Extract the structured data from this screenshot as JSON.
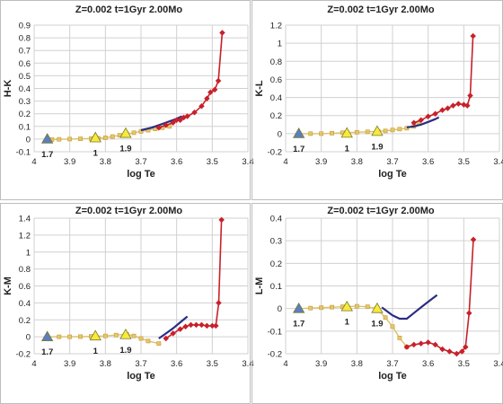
{
  "chart_data": [
    {
      "type": "line",
      "title": "Z=0.002  t=1Gyr  2.00Mo",
      "xlabel": "log Te",
      "ylabel": "H-K",
      "xlim": [
        4.0,
        3.4
      ],
      "ylim": [
        -0.1,
        0.9
      ],
      "xticks": [
        "4",
        "3.9",
        "3.8",
        "3.7",
        "3.6",
        "3.5",
        "3.4"
      ],
      "yticks": [
        "-0.1",
        "0",
        "0.1",
        "0.2",
        "0.3",
        "0.4",
        "0.5",
        "0.6",
        "0.7",
        "0.8",
        "0.9"
      ],
      "grid": true,
      "series": [
        {
          "color": "#c8202a",
          "x": [
            3.65,
            3.63,
            3.61,
            3.6,
            3.59,
            3.58,
            3.57,
            3.55,
            3.53,
            3.515,
            3.505,
            3.493,
            3.483,
            3.472
          ],
          "y": [
            0.09,
            0.11,
            0.13,
            0.15,
            0.15,
            0.17,
            0.18,
            0.21,
            0.26,
            0.32,
            0.37,
            0.39,
            0.46,
            0.84
          ]
        },
        {
          "color": "#2b2d83",
          "x": [
            3.7,
            3.67,
            3.64,
            3.62,
            3.6,
            3.585
          ],
          "y": [
            0.07,
            0.09,
            0.12,
            0.14,
            0.16,
            0.18
          ]
        },
        {
          "color": "#d8c46a",
          "x": [
            3.962,
            3.95,
            3.93,
            3.9,
            3.87,
            3.84,
            3.82,
            3.8,
            3.78,
            3.76,
            3.74,
            3.72,
            3.7,
            3.68,
            3.66,
            3.64,
            3.62
          ],
          "y": [
            -0.005,
            -0.004,
            -0.002,
            0.0,
            0.002,
            0.004,
            0.006,
            0.01,
            0.02,
            0.03,
            0.04,
            0.05,
            0.06,
            0.07,
            0.08,
            0.09,
            0.1
          ]
        }
      ],
      "markers": [
        {
          "label": "1.7",
          "x": 3.963,
          "y": 0.0,
          "color": "#5b7ec2"
        },
        {
          "label": "1",
          "x": 3.828,
          "y": 0.01,
          "color": "#f7ea3c"
        },
        {
          "label": "1.9",
          "x": 3.743,
          "y": 0.045,
          "color": "#f7ea3c"
        }
      ]
    },
    {
      "type": "line",
      "title": "Z=0.002  t=1Gyr  2.00Mo",
      "xlabel": "log Te",
      "ylabel": "K-L",
      "xlim": [
        4.0,
        3.4
      ],
      "ylim": [
        -0.2,
        1.2
      ],
      "xticks": [
        "4",
        "3.9",
        "3.8",
        "3.7",
        "3.6",
        "3.5",
        "3.4"
      ],
      "yticks": [
        "-0.2",
        "0",
        "0.2",
        "0.4",
        "0.6",
        "0.8",
        "1",
        "1.2"
      ],
      "grid": true,
      "series": [
        {
          "color": "#c8202a",
          "x": [
            3.64,
            3.62,
            3.6,
            3.58,
            3.56,
            3.545,
            3.53,
            3.515,
            3.5,
            3.49,
            3.482,
            3.474
          ],
          "y": [
            0.12,
            0.15,
            0.19,
            0.22,
            0.26,
            0.28,
            0.31,
            0.33,
            0.32,
            0.31,
            0.42,
            1.08
          ]
        },
        {
          "color": "#2b2d83",
          "x": [
            3.66,
            3.64,
            3.62,
            3.6,
            3.58,
            3.57
          ],
          "y": [
            0.07,
            0.08,
            0.1,
            0.13,
            0.16,
            0.18
          ]
        },
        {
          "color": "#d8c46a",
          "x": [
            3.962,
            3.93,
            3.9,
            3.87,
            3.84,
            3.8,
            3.77,
            3.74,
            3.72,
            3.7,
            3.68,
            3.66,
            3.64,
            3.625
          ],
          "y": [
            0.0,
            0.0,
            0.0,
            0.005,
            0.01,
            0.015,
            0.02,
            0.025,
            0.03,
            0.04,
            0.05,
            0.06,
            0.08,
            0.11
          ]
        }
      ],
      "markers": [
        {
          "label": "1.7",
          "x": 3.963,
          "y": 0.0,
          "color": "#5b7ec2"
        },
        {
          "label": "1",
          "x": 3.828,
          "y": 0.005,
          "color": "#f7ea3c"
        },
        {
          "label": "1.9",
          "x": 3.743,
          "y": 0.025,
          "color": "#f7ea3c"
        }
      ]
    },
    {
      "type": "line",
      "title": "Z=0.002  t=1Gyr  2.00Mo",
      "xlabel": "log Te",
      "ylabel": "K-M",
      "xlim": [
        4.0,
        3.4
      ],
      "ylim": [
        -0.2,
        1.4
      ],
      "xticks": [
        "4",
        "3.9",
        "3.8",
        "3.7",
        "3.6",
        "3.5",
        "3.4"
      ],
      "yticks": [
        "-0.2",
        "0",
        "0.2",
        "0.4",
        "0.6",
        "0.8",
        "1",
        "1.2",
        "1.4"
      ],
      "grid": true,
      "series": [
        {
          "color": "#c8202a",
          "x": [
            3.63,
            3.61,
            3.59,
            3.575,
            3.56,
            3.545,
            3.53,
            3.515,
            3.5,
            3.49,
            3.482,
            3.474
          ],
          "y": [
            -0.02,
            0.04,
            0.09,
            0.12,
            0.14,
            0.14,
            0.14,
            0.13,
            0.13,
            0.13,
            0.4,
            1.38
          ]
        },
        {
          "color": "#2b2d83",
          "x": [
            3.65,
            3.63,
            3.61,
            3.59,
            3.57
          ],
          "y": [
            -0.02,
            0.04,
            0.1,
            0.17,
            0.24
          ]
        },
        {
          "color": "#d8c46a",
          "x": [
            3.962,
            3.93,
            3.9,
            3.87,
            3.84,
            3.8,
            3.77,
            3.74,
            3.72,
            3.7,
            3.68,
            3.65
          ],
          "y": [
            0.0,
            0.0,
            0.0,
            0.002,
            0.005,
            0.01,
            0.02,
            0.03,
            0.01,
            -0.02,
            -0.05,
            -0.08
          ]
        }
      ],
      "markers": [
        {
          "label": "1.7",
          "x": 3.963,
          "y": 0.0,
          "color": "#5b7ec2"
        },
        {
          "label": "1",
          "x": 3.828,
          "y": 0.01,
          "color": "#f7ea3c"
        },
        {
          "label": "1.9",
          "x": 3.743,
          "y": 0.025,
          "color": "#f7ea3c"
        }
      ]
    },
    {
      "type": "line",
      "title": "Z=0.002  t=1Gyr  2.00Mo",
      "xlabel": "log Te",
      "ylabel": "L-M",
      "xlim": [
        4.0,
        3.4
      ],
      "ylim": [
        -0.2,
        0.4
      ],
      "xticks": [
        "4",
        "3.9",
        "3.8",
        "3.7",
        "3.6",
        "3.5",
        "3.4"
      ],
      "yticks": [
        "-0.2",
        "-0.1",
        "0",
        "0.1",
        "0.2",
        "0.3",
        "0.4"
      ],
      "grid": true,
      "series": [
        {
          "color": "#c8202a",
          "x": [
            3.66,
            3.64,
            3.62,
            3.6,
            3.58,
            3.56,
            3.54,
            3.52,
            3.505,
            3.495,
            3.485,
            3.473
          ],
          "y": [
            -0.17,
            -0.16,
            -0.155,
            -0.15,
            -0.16,
            -0.18,
            -0.19,
            -0.2,
            -0.19,
            -0.17,
            -0.02,
            0.305
          ]
        },
        {
          "color": "#2b2d83",
          "x": [
            3.73,
            3.7,
            3.68,
            3.66,
            3.64,
            3.62,
            3.6,
            3.575
          ],
          "y": [
            0.005,
            -0.03,
            -0.045,
            -0.045,
            -0.02,
            0.005,
            0.03,
            0.06
          ]
        },
        {
          "color": "#d8c46a",
          "x": [
            3.962,
            3.93,
            3.9,
            3.87,
            3.84,
            3.8,
            3.77,
            3.745,
            3.72,
            3.7,
            3.68,
            3.66
          ],
          "y": [
            0.0,
            0.002,
            0.004,
            0.006,
            0.008,
            0.01,
            0.008,
            0.0,
            -0.04,
            -0.08,
            -0.13,
            -0.17
          ]
        }
      ],
      "markers": [
        {
          "label": "1.7",
          "x": 3.963,
          "y": 0.0,
          "color": "#5b7ec2"
        },
        {
          "label": "1",
          "x": 3.828,
          "y": 0.008,
          "color": "#f7ea3c"
        },
        {
          "label": "1.9",
          "x": 3.743,
          "y": 0.0,
          "color": "#f7ea3c"
        }
      ]
    }
  ]
}
